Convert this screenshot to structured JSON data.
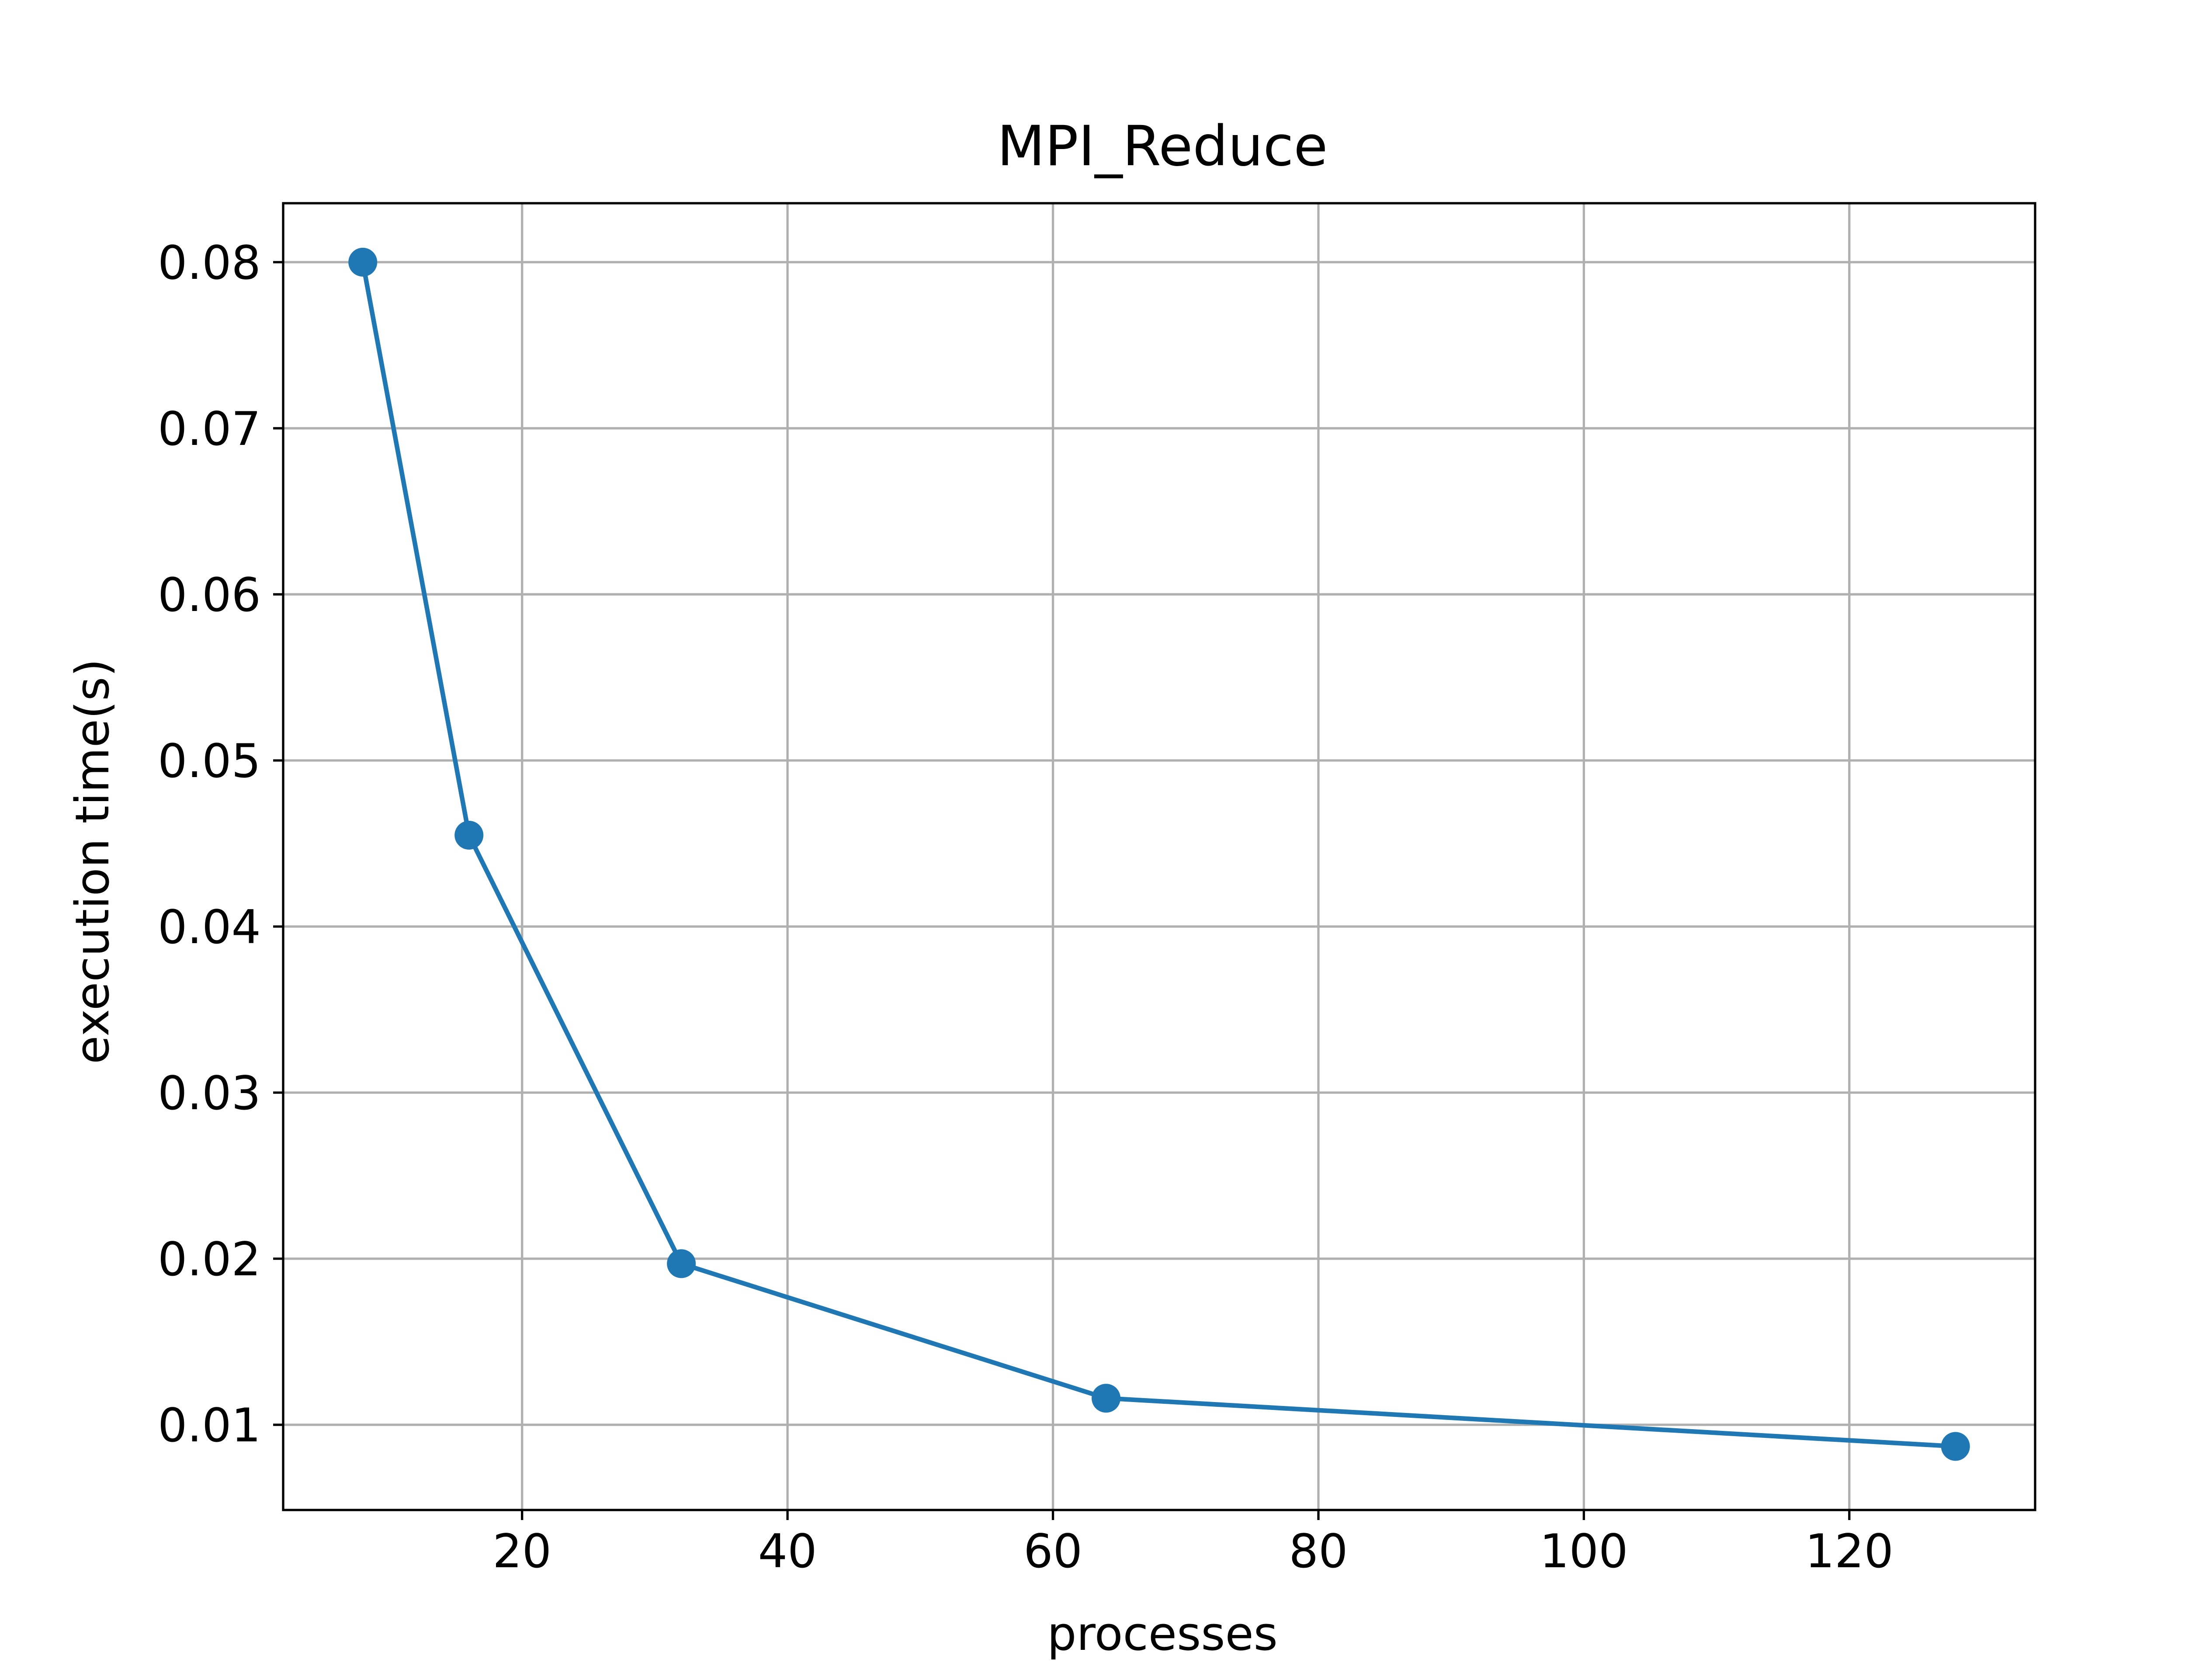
{
  "chart_data": {
    "type": "line",
    "title": "MPI_Reduce",
    "xlabel": "processes",
    "ylabel": "execution time(s)",
    "xlim": [
      2.0,
      134.0
    ],
    "ylim": [
      0.00487,
      0.08355
    ],
    "x_ticks": [
      20,
      40,
      60,
      80,
      100,
      120
    ],
    "y_ticks": [
      0.01,
      0.02,
      0.03,
      0.04,
      0.05,
      0.06,
      0.07,
      0.08
    ],
    "x_tick_labels": [
      "20",
      "40",
      "60",
      "80",
      "100",
      "120"
    ],
    "y_tick_labels": [
      "0.01",
      "0.02",
      "0.03",
      "0.04",
      "0.05",
      "0.06",
      "0.07",
      "0.08"
    ],
    "grid": true,
    "legend": "none",
    "series": [
      {
        "color": "#1f77b4",
        "marker": "circle",
        "x": [
          8,
          16,
          32,
          64,
          128
        ],
        "y": [
          0.08,
          0.0455,
          0.0197,
          0.0116,
          0.0087
        ]
      }
    ]
  }
}
